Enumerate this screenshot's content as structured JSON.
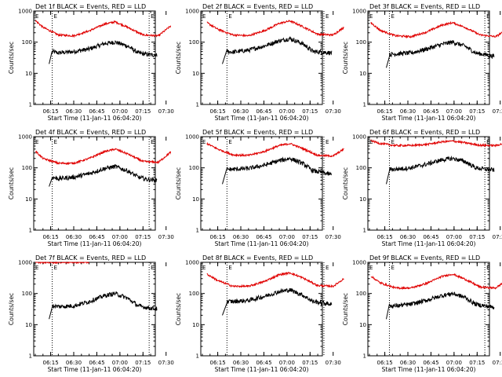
{
  "figure": {
    "colors": {
      "events": "#000000",
      "lld": "#e00000",
      "axes": "#000000"
    },
    "xlabel": "Start Time (11-Jan-11 06:04:20)",
    "ylabel": "Counts/sec",
    "marker_label": "E"
  },
  "chart_data": [
    {
      "type": "line",
      "title": "Det 1f BLACK = Events, RED = LLD",
      "xlabel": "Start Time (11-Jan-11 06:04:20)",
      "ylabel": "Counts/sec",
      "x_ticks": [
        "06:15",
        "06:30",
        "06:45",
        "07:00",
        "07:15",
        "07:30"
      ],
      "y_ticks": [
        "1",
        "10",
        "100",
        "1000"
      ],
      "yscale": "log",
      "ylim": [
        1,
        1000
      ],
      "xlim_minutes_after_0600": [
        4,
        83
      ],
      "events_markers_x": [
        "06:16",
        "07:19"
      ],
      "series": [
        {
          "name": "BLACK = Events",
          "color": "black",
          "x": [
            "06:14",
            "06:16",
            "06:20",
            "06:30",
            "06:40",
            "06:50",
            "06:57",
            "07:05",
            "07:12",
            "07:18",
            "07:24"
          ],
          "y": [
            20,
            50,
            45,
            50,
            60,
            90,
            100,
            75,
            45,
            40,
            38
          ]
        },
        {
          "name": "RED = LLD",
          "color": "red",
          "x": [
            "06:05",
            "06:10",
            "06:20",
            "06:30",
            "06:40",
            "06:50",
            "06:57",
            "07:05",
            "07:15",
            "07:25",
            "07:33"
          ],
          "y": [
            500,
            300,
            170,
            160,
            230,
            380,
            450,
            300,
            170,
            160,
            330
          ]
        }
      ]
    },
    {
      "type": "line",
      "title": "Det 2f BLACK = Events, RED = LLD",
      "xlabel": "Start Time (11-Jan-11 06:04:20)",
      "ylabel": "Counts/sec",
      "x_ticks": [
        "06:15",
        "06:30",
        "06:45",
        "07:00",
        "07:15",
        "07:30"
      ],
      "y_ticks": [
        "1",
        "10",
        "100",
        "1000"
      ],
      "yscale": "log",
      "ylim": [
        1,
        1000
      ],
      "xlim_minutes_after_0600": [
        4,
        83
      ],
      "events_markers_x": [
        "06:21",
        "07:24"
      ],
      "series": [
        {
          "name": "BLACK = Events",
          "color": "black",
          "x": [
            "06:18",
            "06:21",
            "06:25",
            "06:35",
            "06:45",
            "06:55",
            "07:02",
            "07:10",
            "07:17",
            "07:23",
            "07:29"
          ],
          "y": [
            20,
            50,
            48,
            55,
            75,
            110,
            130,
            90,
            50,
            48,
            45
          ]
        },
        {
          "name": "RED = LLD",
          "color": "red",
          "x": [
            "06:08",
            "06:15",
            "06:25",
            "06:35",
            "06:45",
            "06:55",
            "07:02",
            "07:10",
            "07:20",
            "07:30",
            "07:37"
          ],
          "y": [
            420,
            260,
            170,
            160,
            230,
            400,
            480,
            320,
            180,
            170,
            300
          ]
        }
      ]
    },
    {
      "type": "line",
      "title": "Det 3f BLACK = Events, RED = LLD",
      "xlabel": "Start Time (11-Jan-11 06:04:20)",
      "ylabel": "Counts/sec",
      "x_ticks": [
        "06:15",
        "06:30",
        "06:45",
        "07:00",
        "07:15",
        "07:30"
      ],
      "y_ticks": [
        "1",
        "10",
        "100",
        "1000"
      ],
      "yscale": "log",
      "ylim": [
        1,
        1000
      ],
      "xlim_minutes_after_0600": [
        4,
        83
      ],
      "events_markers_x": [
        "06:18",
        "07:20"
      ],
      "series": [
        {
          "name": "BLACK = Events",
          "color": "black",
          "x": [
            "06:16",
            "06:18",
            "06:22",
            "06:32",
            "06:42",
            "06:52",
            "06:59",
            "07:07",
            "07:14",
            "07:20",
            "07:26"
          ],
          "y": [
            15,
            40,
            42,
            45,
            60,
            85,
            100,
            75,
            45,
            40,
            35
          ]
        },
        {
          "name": "RED = LLD",
          "color": "red",
          "x": [
            "06:06",
            "06:12",
            "06:22",
            "06:32",
            "06:42",
            "06:52",
            "06:59",
            "07:07",
            "07:17",
            "07:27",
            "07:35"
          ],
          "y": [
            420,
            240,
            160,
            150,
            210,
            350,
            420,
            300,
            170,
            150,
            260
          ]
        }
      ]
    },
    {
      "type": "line",
      "title": "Det 4f BLACK = Events, RED = LLD",
      "xlabel": "Start Time (11-Jan-11 06:04:20)",
      "ylabel": "Counts/sec",
      "x_ticks": [
        "06:15",
        "06:30",
        "06:45",
        "07:00",
        "07:15",
        "07:30"
      ],
      "y_ticks": [
        "1",
        "10",
        "100",
        "1000"
      ],
      "yscale": "log",
      "ylim": [
        1,
        1000
      ],
      "xlim_minutes_after_0600": [
        4,
        83
      ],
      "events_markers_x": [
        "06:16",
        "07:19"
      ],
      "series": [
        {
          "name": "BLACK = Events",
          "color": "black",
          "x": [
            "06:14",
            "06:16",
            "06:20",
            "06:30",
            "06:40",
            "06:50",
            "06:57",
            "07:05",
            "07:12",
            "07:18",
            "07:24"
          ],
          "y": [
            25,
            50,
            45,
            50,
            65,
            95,
            110,
            80,
            50,
            42,
            40
          ]
        },
        {
          "name": "RED = LLD",
          "color": "red",
          "x": [
            "06:05",
            "06:10",
            "06:20",
            "06:30",
            "06:40",
            "06:50",
            "06:57",
            "07:05",
            "07:15",
            "07:25",
            "07:33"
          ],
          "y": [
            350,
            200,
            140,
            140,
            200,
            330,
            400,
            280,
            160,
            150,
            320
          ]
        }
      ]
    },
    {
      "type": "line",
      "title": "Det 5f BLACK = Events, RED = LLD",
      "xlabel": "Start Time (11-Jan-11 06:04:20)",
      "ylabel": "Counts/sec",
      "x_ticks": [
        "06:15",
        "06:30",
        "06:45",
        "07:00",
        "07:15",
        "07:30"
      ],
      "y_ticks": [
        "1",
        "10",
        "100",
        "1000"
      ],
      "yscale": "log",
      "ylim": [
        1,
        1000
      ],
      "xlim_minutes_after_0600": [
        4,
        83
      ],
      "events_markers_x": [
        "06:21",
        "07:24"
      ],
      "series": [
        {
          "name": "BLACK = Events",
          "color": "black",
          "x": [
            "06:18",
            "06:21",
            "06:25",
            "06:35",
            "06:45",
            "06:55",
            "07:02",
            "07:10",
            "07:17",
            "07:23",
            "07:29"
          ],
          "y": [
            30,
            90,
            90,
            95,
            120,
            170,
            200,
            140,
            80,
            70,
            60
          ]
        },
        {
          "name": "RED = LLD",
          "color": "red",
          "x": [
            "06:08",
            "06:15",
            "06:25",
            "06:35",
            "06:45",
            "06:55",
            "07:02",
            "07:10",
            "07:20",
            "07:30",
            "07:37"
          ],
          "y": [
            600,
            400,
            260,
            250,
            330,
            520,
            600,
            420,
            250,
            240,
            400
          ]
        }
      ]
    },
    {
      "type": "line",
      "title": "Det 6f BLACK = Events, RED = LLD",
      "xlabel": "Start Time (11-Jan-11 06:04:20)",
      "ylabel": "Counts/sec",
      "x_ticks": [
        "06:15",
        "06:30",
        "06:45",
        "07:00",
        "07:15",
        "07:30"
      ],
      "y_ticks": [
        "1",
        "10",
        "100",
        "1000"
      ],
      "yscale": "log",
      "ylim": [
        1,
        1000
      ],
      "xlim_minutes_after_0600": [
        4,
        83
      ],
      "events_markers_x": [
        "06:18",
        "07:20"
      ],
      "series": [
        {
          "name": "BLACK = Events",
          "color": "black",
          "x": [
            "06:16",
            "06:18",
            "06:22",
            "06:32",
            "06:42",
            "06:52",
            "06:59",
            "07:07",
            "07:14",
            "07:20",
            "07:26"
          ],
          "y": [
            30,
            90,
            90,
            100,
            130,
            180,
            200,
            160,
            100,
            90,
            85
          ]
        },
        {
          "name": "RED = LLD",
          "color": "red",
          "x": [
            "06:06",
            "06:12",
            "06:22",
            "06:32",
            "06:42",
            "06:52",
            "06:59",
            "07:07",
            "07:17",
            "07:27",
            "07:35"
          ],
          "y": [
            750,
            600,
            520,
            520,
            560,
            680,
            720,
            640,
            530,
            520,
            650
          ]
        }
      ]
    },
    {
      "type": "line",
      "title": "Det 7f BLACK = Events, RED = LLD",
      "xlabel": "Start Time (11-Jan-11 06:04:20)",
      "ylabel": "Counts/sec",
      "x_ticks": [
        "06:15",
        "06:30",
        "06:45",
        "07:00",
        "07:15",
        "07:30"
      ],
      "y_ticks": [
        "1",
        "10",
        "100",
        "1000"
      ],
      "yscale": "log",
      "ylim": [
        1,
        1000
      ],
      "xlim_minutes_after_0600": [
        4,
        83
      ],
      "events_markers_x": [
        "06:16",
        "07:19"
      ],
      "series": [
        {
          "name": "BLACK = Events",
          "color": "black",
          "x": [
            "06:14",
            "06:16",
            "06:20",
            "06:30",
            "06:40",
            "06:50",
            "06:57",
            "07:05",
            "07:12",
            "07:18",
            "07:24"
          ],
          "y": [
            15,
            40,
            38,
            40,
            55,
            85,
            100,
            70,
            40,
            35,
            32
          ]
        },
        {
          "name": "RED = LLD",
          "color": "red",
          "x": [
            "06:05",
            "06:10",
            "06:20",
            "06:30",
            "06:40"
          ],
          "y": [
            1000,
            1000,
            1000,
            1000,
            1000
          ]
        }
      ]
    },
    {
      "type": "line",
      "title": "Det 8f BLACK = Events, RED = LLD",
      "xlabel": "Start Time (11-Jan-11 06:04:20)",
      "ylabel": "Counts/sec",
      "x_ticks": [
        "06:15",
        "06:30",
        "06:45",
        "07:00",
        "07:15",
        "07:30"
      ],
      "y_ticks": [
        "1",
        "10",
        "100",
        "1000"
      ],
      "yscale": "log",
      "ylim": [
        1,
        1000
      ],
      "xlim_minutes_after_0600": [
        4,
        83
      ],
      "events_markers_x": [
        "06:21",
        "07:24"
      ],
      "series": [
        {
          "name": "BLACK = Events",
          "color": "black",
          "x": [
            "06:18",
            "06:21",
            "06:25",
            "06:35",
            "06:45",
            "06:55",
            "07:02",
            "07:10",
            "07:17",
            "07:23",
            "07:29"
          ],
          "y": [
            20,
            55,
            55,
            60,
            80,
            115,
            130,
            90,
            55,
            50,
            45
          ]
        },
        {
          "name": "RED = LLD",
          "color": "red",
          "x": [
            "06:08",
            "06:15",
            "06:25",
            "06:35",
            "06:45",
            "06:55",
            "07:02",
            "07:10",
            "07:20",
            "07:30",
            "07:37"
          ],
          "y": [
            420,
            260,
            170,
            170,
            240,
            400,
            460,
            320,
            180,
            170,
            300
          ]
        }
      ]
    },
    {
      "type": "line",
      "title": "Det 9f BLACK = Events, RED = LLD",
      "xlabel": "Start Time (11-Jan-11 06:04:20)",
      "ylabel": "Counts/sec",
      "x_ticks": [
        "06:15",
        "06:30",
        "06:45",
        "07:00",
        "07:15",
        "07:30"
      ],
      "y_ticks": [
        "1",
        "10",
        "100",
        "1000"
      ],
      "yscale": "log",
      "ylim": [
        1,
        1000
      ],
      "xlim_minutes_after_0600": [
        4,
        83
      ],
      "events_markers_x": [
        "06:18",
        "07:20"
      ],
      "series": [
        {
          "name": "BLACK = Events",
          "color": "black",
          "x": [
            "06:16",
            "06:18",
            "06:22",
            "06:32",
            "06:42",
            "06:52",
            "06:59",
            "07:07",
            "07:14",
            "07:20",
            "07:26"
          ],
          "y": [
            15,
            40,
            40,
            45,
            60,
            85,
            100,
            75,
            45,
            40,
            36
          ]
        },
        {
          "name": "RED = LLD",
          "color": "red",
          "x": [
            "06:06",
            "06:12",
            "06:22",
            "06:32",
            "06:42",
            "06:52",
            "06:59",
            "07:07",
            "07:17",
            "07:27",
            "07:35"
          ],
          "y": [
            360,
            220,
            150,
            150,
            210,
            350,
            420,
            290,
            160,
            150,
            280
          ]
        }
      ]
    }
  ]
}
